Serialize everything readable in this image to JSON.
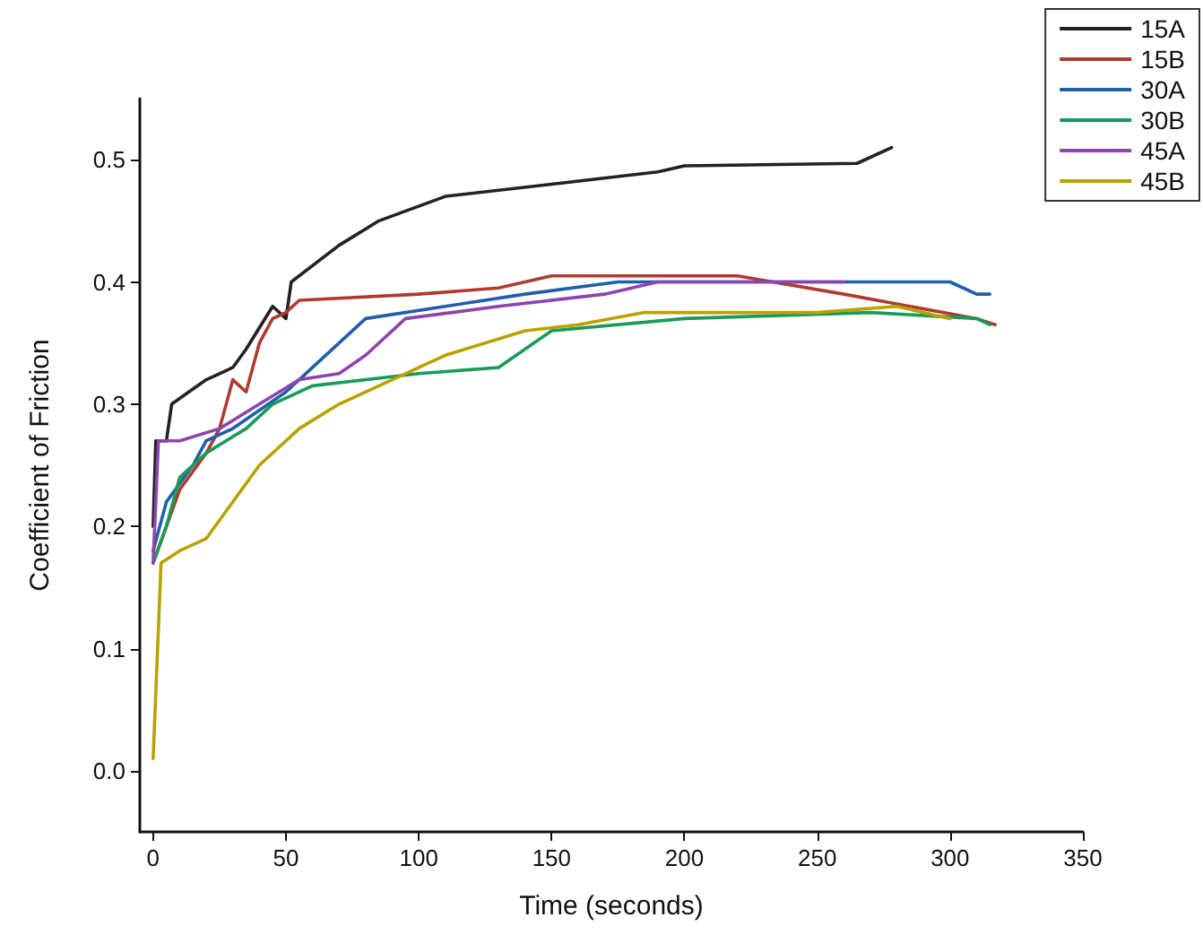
{
  "chart_data": {
    "type": "line",
    "xlabel": "Time (seconds)",
    "ylabel": "Coefficient of Friction",
    "xlim": [
      -5,
      350
    ],
    "xticks": [
      0,
      50,
      100,
      150,
      200,
      250,
      300,
      350
    ],
    "ylim": [
      -0.05,
      0.55
    ],
    "yticks": [
      {
        "value": 0,
        "label": "0.0"
      },
      {
        "value": 0.1,
        "label": "0.1"
      },
      {
        "value": 0.2,
        "label": "0.2"
      },
      {
        "value": 0.3,
        "label": "0.3"
      },
      {
        "value": 0.4,
        "label": "0.4"
      },
      {
        "value": 0.5,
        "label": "0.5"
      }
    ],
    "grid": false,
    "legend": "top right",
    "marker": "none",
    "line_style": "solid",
    "series": [
      {
        "name": "15A",
        "color": "#222222",
        "x": [
          0,
          1,
          5,
          7,
          20,
          30,
          35,
          45,
          50,
          52,
          70,
          85,
          110,
          150,
          190,
          200,
          265,
          278
        ],
        "values": [
          0.2,
          0.27,
          0.27,
          0.3,
          0.32,
          0.33,
          0.345,
          0.38,
          0.37,
          0.4,
          0.43,
          0.45,
          0.47,
          0.48,
          0.49,
          0.495,
          0.497,
          0.51
        ]
      },
      {
        "name": "15B",
        "color": "#b03a2e",
        "x": [
          0,
          5,
          10,
          20,
          25,
          30,
          35,
          40,
          45,
          50,
          55,
          100,
          130,
          150,
          220,
          260,
          310,
          317
        ],
        "values": [
          0.17,
          0.2,
          0.23,
          0.26,
          0.28,
          0.32,
          0.31,
          0.35,
          0.37,
          0.375,
          0.385,
          0.39,
          0.395,
          0.405,
          0.405,
          0.39,
          0.37,
          0.365
        ]
      },
      {
        "name": "30A",
        "color": "#1f5fa8",
        "x": [
          0,
          5,
          15,
          20,
          30,
          50,
          60,
          70,
          80,
          110,
          140,
          175,
          300,
          310,
          315
        ],
        "values": [
          0.18,
          0.22,
          0.25,
          0.27,
          0.28,
          0.31,
          0.33,
          0.35,
          0.37,
          0.38,
          0.39,
          0.4,
          0.4,
          0.39,
          0.39
        ]
      },
      {
        "name": "30B",
        "color": "#1a9a5a",
        "x": [
          0,
          5,
          10,
          20,
          35,
          45,
          60,
          100,
          130,
          150,
          200,
          270,
          310,
          315
        ],
        "values": [
          0.17,
          0.2,
          0.24,
          0.26,
          0.28,
          0.3,
          0.315,
          0.325,
          0.33,
          0.36,
          0.37,
          0.375,
          0.37,
          0.365
        ]
      },
      {
        "name": "45A",
        "color": "#8e44ad",
        "x": [
          0,
          2,
          10,
          25,
          40,
          55,
          70,
          80,
          95,
          130,
          170,
          190,
          260
        ],
        "values": [
          0.17,
          0.27,
          0.27,
          0.28,
          0.3,
          0.32,
          0.325,
          0.34,
          0.37,
          0.38,
          0.39,
          0.4,
          0.4
        ]
      },
      {
        "name": "45B",
        "color": "#b8a200",
        "x": [
          0,
          3,
          10,
          20,
          30,
          40,
          55,
          70,
          90,
          110,
          140,
          160,
          185,
          250,
          280,
          300
        ],
        "values": [
          0.01,
          0.17,
          0.18,
          0.19,
          0.22,
          0.25,
          0.28,
          0.3,
          0.32,
          0.34,
          0.36,
          0.365,
          0.375,
          0.375,
          0.38,
          0.37
        ]
      }
    ]
  }
}
